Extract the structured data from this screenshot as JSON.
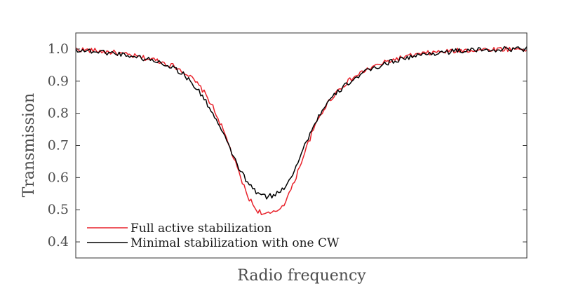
{
  "colors": {
    "red": "#e8222b",
    "black": "#000000"
  },
  "chart_data": {
    "type": "line",
    "xlabel": "Radio frequency",
    "ylabel": "Transmission",
    "xlim": [
      0,
      1
    ],
    "ylim": [
      0.35,
      1.05
    ],
    "yticks": [
      0.4,
      0.5,
      0.6,
      0.7,
      0.8,
      0.9,
      1.0
    ],
    "ytick_labels": [
      "0.4",
      "0.5",
      "0.6",
      "0.7",
      "0.8",
      "0.9",
      "1.0"
    ],
    "xticks": [],
    "grid": false,
    "legend_position": "bottom-left",
    "series": [
      {
        "name": "Full active stabilization",
        "color": "#e8222b",
        "x": [
          0.0,
          0.02,
          0.04,
          0.06,
          0.08,
          0.1,
          0.12,
          0.14,
          0.16,
          0.18,
          0.2,
          0.22,
          0.24,
          0.26,
          0.28,
          0.3,
          0.32,
          0.34,
          0.36,
          0.38,
          0.4,
          0.42,
          0.44,
          0.46,
          0.48,
          0.5,
          0.52,
          0.54,
          0.56,
          0.58,
          0.6,
          0.62,
          0.64,
          0.66,
          0.68,
          0.7,
          0.72,
          0.74,
          0.76,
          0.78,
          0.8,
          0.82,
          0.84,
          0.86,
          0.88,
          0.9,
          0.92,
          0.94,
          0.96,
          0.98,
          1.0
        ],
        "y": [
          1.0,
          0.997,
          0.995,
          0.992,
          0.99,
          0.985,
          0.98,
          0.975,
          0.97,
          0.965,
          0.955,
          0.945,
          0.93,
          0.905,
          0.875,
          0.83,
          0.77,
          0.7,
          0.62,
          0.545,
          0.5,
          0.485,
          0.49,
          0.515,
          0.57,
          0.65,
          0.725,
          0.79,
          0.835,
          0.87,
          0.895,
          0.915,
          0.932,
          0.945,
          0.955,
          0.965,
          0.972,
          0.978,
          0.983,
          0.987,
          0.99,
          0.992,
          0.994,
          0.996,
          0.997,
          0.998,
          0.999,
          1.0,
          1.0,
          1.0,
          1.0
        ]
      },
      {
        "name": "Minimal stabilization with one CW",
        "color": "#000000",
        "x": [
          0.0,
          0.02,
          0.04,
          0.06,
          0.08,
          0.1,
          0.12,
          0.14,
          0.16,
          0.18,
          0.2,
          0.22,
          0.24,
          0.26,
          0.28,
          0.3,
          0.32,
          0.34,
          0.36,
          0.38,
          0.4,
          0.42,
          0.44,
          0.46,
          0.48,
          0.5,
          0.52,
          0.54,
          0.56,
          0.58,
          0.6,
          0.62,
          0.64,
          0.66,
          0.68,
          0.7,
          0.72,
          0.74,
          0.76,
          0.78,
          0.8,
          0.82,
          0.84,
          0.86,
          0.88,
          0.9,
          0.92,
          0.94,
          0.96,
          0.98,
          1.0
        ],
        "y": [
          0.998,
          0.995,
          0.993,
          0.99,
          0.988,
          0.984,
          0.98,
          0.974,
          0.968,
          0.962,
          0.952,
          0.94,
          0.92,
          0.89,
          0.855,
          0.81,
          0.755,
          0.695,
          0.635,
          0.585,
          0.555,
          0.54,
          0.545,
          0.565,
          0.61,
          0.675,
          0.74,
          0.795,
          0.835,
          0.865,
          0.89,
          0.91,
          0.927,
          0.94,
          0.951,
          0.961,
          0.969,
          0.975,
          0.98,
          0.985,
          0.988,
          0.991,
          0.993,
          0.995,
          0.996,
          0.997,
          0.998,
          0.999,
          1.0,
          1.0,
          1.0
        ]
      }
    ]
  }
}
